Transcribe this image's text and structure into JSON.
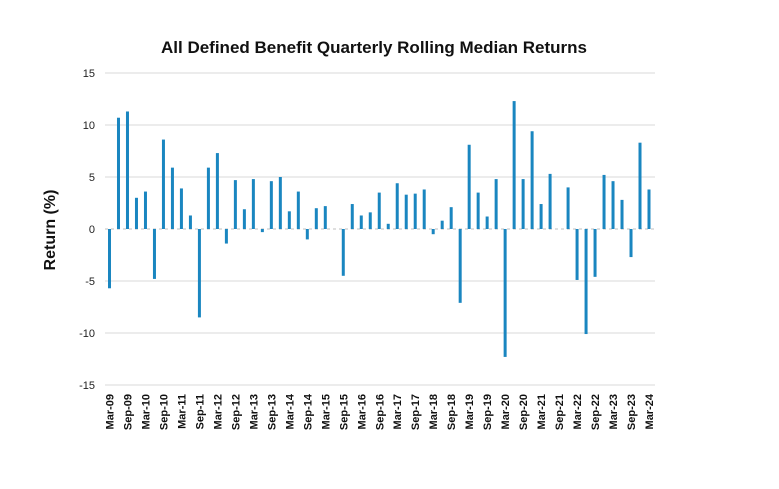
{
  "colors": {
    "bar": "#1a86c0",
    "grid": "#d9d9d9",
    "text": "#111111"
  },
  "chart_data": {
    "type": "bar",
    "title": "All Defined Benefit Quarterly Rolling Median Returns",
    "ylabel": "Return (%)",
    "xlabel": "",
    "ylim": [
      -15,
      15
    ],
    "yticks": [
      15,
      10,
      5,
      0,
      -5,
      -10,
      -15
    ],
    "grid": true,
    "categories": [
      "Mar-09",
      "Jun-09",
      "Sep-09",
      "Dec-09",
      "Mar-10",
      "Jun-10",
      "Sep-10",
      "Dec-10",
      "Mar-11",
      "Jun-11",
      "Sep-11",
      "Dec-11",
      "Mar-12",
      "Jun-12",
      "Sep-12",
      "Dec-12",
      "Mar-13",
      "Jun-13",
      "Sep-13",
      "Dec-13",
      "Mar-14",
      "Jun-14",
      "Sep-14",
      "Dec-14",
      "Mar-15",
      "Jun-15",
      "Sep-15",
      "Dec-15",
      "Mar-16",
      "Jun-16",
      "Sep-16",
      "Dec-16",
      "Mar-17",
      "Jun-17",
      "Sep-17",
      "Dec-17",
      "Mar-18",
      "Jun-18",
      "Sep-18",
      "Dec-18",
      "Mar-19",
      "Jun-19",
      "Sep-19",
      "Dec-19",
      "Mar-20",
      "Jun-20",
      "Sep-20",
      "Dec-20",
      "Mar-21",
      "Jun-21",
      "Sep-21",
      "Dec-21",
      "Mar-22",
      "Jun-22",
      "Sep-22",
      "Dec-22",
      "Mar-23",
      "Jun-23",
      "Sep-23",
      "Dec-23",
      "Mar-24"
    ],
    "tick_labels": [
      "Mar-09",
      "Sep-09",
      "Mar-10",
      "Sep-10",
      "Mar-11",
      "Sep-11",
      "Mar-12",
      "Sep-12",
      "Mar-13",
      "Sep-13",
      "Mar-14",
      "Sep-14",
      "Mar-15",
      "Sep-15",
      "Mar-16",
      "Sep-16",
      "Mar-17",
      "Sep-17",
      "Mar-18",
      "Sep-18",
      "Mar-19",
      "Sep-19",
      "Mar-20",
      "Sep-20",
      "Mar-21",
      "Sep-21",
      "Mar-22",
      "Sep-22",
      "Mar-23",
      "Sep-23",
      "Mar-24"
    ],
    "values": [
      -5.7,
      10.7,
      11.3,
      3.0,
      3.6,
      -4.8,
      8.6,
      5.9,
      3.9,
      1.3,
      -8.5,
      5.9,
      7.3,
      -1.4,
      4.7,
      1.9,
      4.8,
      -0.3,
      4.6,
      5.0,
      1.7,
      3.6,
      -1.0,
      2.0,
      2.2,
      0.0,
      -4.5,
      2.4,
      1.3,
      1.6,
      3.5,
      0.5,
      4.4,
      3.3,
      3.4,
      3.8,
      -0.5,
      0.8,
      2.1,
      -7.1,
      8.1,
      3.5,
      1.2,
      4.8,
      -12.3,
      12.3,
      4.8,
      9.4,
      2.4,
      5.3,
      0.0,
      4.0,
      -4.9,
      -10.1,
      -4.6,
      5.2,
      4.6,
      2.8,
      -2.7,
      8.3,
      3.8
    ]
  }
}
